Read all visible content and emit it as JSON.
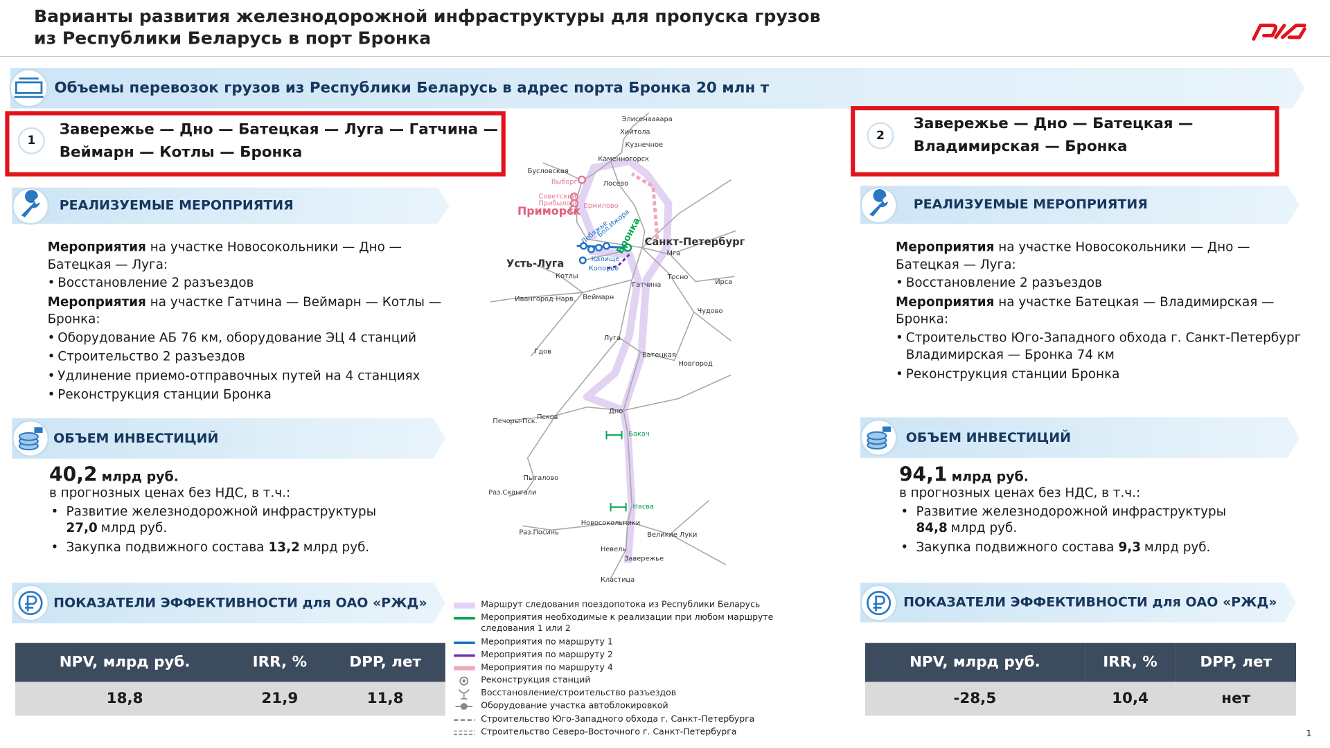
{
  "header": {
    "title_lines": [
      "Варианты развития железнодорожной инфраструктуры для пропуска грузов",
      "из Республики Беларусь в порт Бронка"
    ]
  },
  "banner": "Объемы перевозок грузов из Республики Беларусь в адрес порта Бронка 20 млн т",
  "options": [
    {
      "number": "1",
      "route_lines": [
        "Завережье — Дно — Батецкая — Луга — Гатчина —",
        "Веймарн — Котлы — Бронка"
      ],
      "measures_title": "РЕАЛИЗУЕМЫЕ МЕРОПРИЯТИЯ",
      "measures": [
        {
          "lead": "Мероприятия",
          "text": "на участке Новосокольники — Дно — Батецкая — Луга:",
          "items": [
            "Восстановление 2 разъездов"
          ]
        },
        {
          "lead": "Мероприятия",
          "text": "на участке Гатчина — Веймарн — Котлы — Бронка:",
          "items": [
            "Оборудование АБ 76 км, оборудование ЭЦ 4 станций",
            "Строительство 2 разъездов",
            "Удлинение приемо-отправочных путей на 4 станциях",
            "Реконструкция станции Бронка"
          ]
        }
      ],
      "investment_title": "ОБЪЕМ ИНВЕСТИЦИЙ",
      "investment_total": "40,2",
      "investment_unit": "млрд руб.",
      "investment_note": "в прогнозных ценах без НДС, в т.ч.:",
      "investment_items": [
        {
          "text": "Развитие железнодорожной инфраструктуры",
          "amount": "27,0",
          "unit": "млрд руб."
        },
        {
          "text": "Закупка подвижного состава",
          "amount": "13,2",
          "unit": "млрд руб."
        }
      ],
      "efficiency_title": "ПОКАЗАТЕЛИ ЭФФЕКТИВНОСТИ для ОАО «РЖД»",
      "table": {
        "header": [
          "NPV, млрд руб.",
          "IRR, %",
          "DPP, лет"
        ],
        "row": [
          "18,8",
          "21,9",
          "11,8"
        ]
      }
    },
    {
      "number": "2",
      "route_lines": [
        "Завережье — Дно — Батецкая —",
        "Владимирская — Бронка"
      ],
      "measures_title": "РЕАЛИЗУЕМЫЕ МЕРОПРИЯТИЯ",
      "measures": [
        {
          "lead": "Мероприятия",
          "text": "на участке Новосокольники — Дно — Батецкая — Луга:",
          "items": [
            "Восстановление 2 разъездов"
          ]
        },
        {
          "lead": "Мероприятия",
          "text": "на участке Батецкая — Владимирская — Бронка:",
          "items": [
            "Строительство Юго-Западного обхода г. Санкт-Петербург Владимирская — Бронка 74 км",
            "Реконструкция станции Бронка"
          ]
        }
      ],
      "investment_title": "ОБЪЕМ ИНВЕСТИЦИЙ",
      "investment_total": "94,1",
      "investment_unit": "млрд руб.",
      "investment_note": "в прогнозных ценах без НДС, в т.ч.:",
      "investment_items": [
        {
          "text": "Развитие железнодорожной инфраструктуры",
          "amount": "84,8",
          "unit": "млрд руб."
        },
        {
          "text": "Закупка подвижного состава",
          "amount": "9,3",
          "unit": "млрд руб."
        }
      ],
      "efficiency_title": "ПОКАЗАТЕЛИ ЭФФЕКТИВНОСТИ для ОАО «РЖД»",
      "table": {
        "header": [
          "NPV, млрд руб.",
          "IRR, %",
          "DPP, лет"
        ],
        "row": [
          "-28,5",
          "10,4",
          "нет"
        ]
      }
    }
  ],
  "map": {
    "stations": [
      "Элисенаавара",
      "Хийтола",
      "Кузнечное",
      "Каменногорск",
      "Бусловская",
      "Выборг",
      "Лосево",
      "Советский",
      "Прибылово",
      "Ермилово",
      "Приморск",
      "Лебяжье",
      "Бол.Ижора",
      "Калище",
      "Копорье",
      "Бронка",
      "Санкт-Петербург",
      "Мга",
      "Усть-Луга",
      "Котлы",
      "Тосно",
      "Ирса",
      "Гатчина",
      "Ивангород-Нарв.",
      "Веймарн",
      "Чудово",
      "Гдов",
      "Луга",
      "Батецкая",
      "Новгород",
      "Печоры-Пск.",
      "Псков",
      "Дно",
      "Бакач",
      "Пыталово",
      "Раз.Скангали",
      "Насва",
      "Новосокольники",
      "Раз.Посинь",
      "Великие Луки",
      "Невель",
      "Завережье",
      "Кластица"
    ]
  },
  "legend": [
    "Маршрут следования поездопотока из Республики Беларусь",
    "Мероприятия необходимые к реализации при любом маршруте следования 1 или 2",
    "Мероприятия по маршруту 1",
    "Мероприятия по маршруту 2",
    "Мероприятия по маршруту 4",
    "Реконструкция станций",
    "Восстановление/строительство разъездов",
    "Оборудование участка автоблокировкой",
    "Строительство Юго-Западного обхода  г. Санкт-Петербурга",
    "Строительство Северо-Восточного  г. Санкт-Петербурга"
  ],
  "page_number": "1"
}
